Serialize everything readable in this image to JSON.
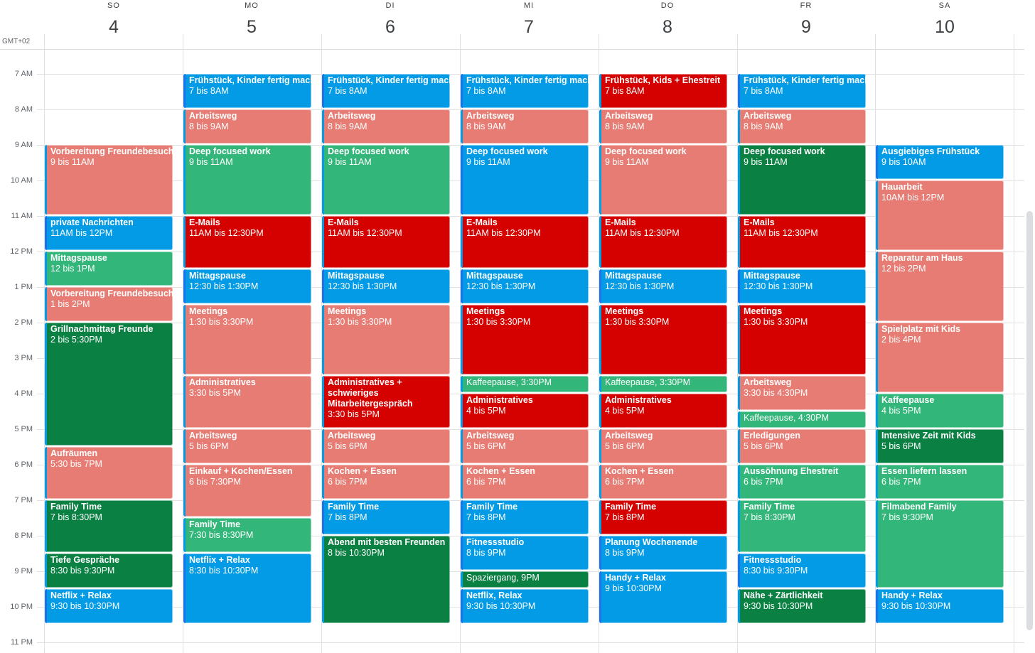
{
  "timezone": "GMT+02",
  "hours": [
    "7 AM",
    "8 AM",
    "9 AM",
    "10 AM",
    "11 AM",
    "12 PM",
    "1 PM",
    "2 PM",
    "3 PM",
    "4 PM",
    "5 PM",
    "6 PM",
    "7 PM",
    "8 PM",
    "9 PM",
    "10 PM",
    "11 PM"
  ],
  "colors": {
    "blue": "#039be5",
    "salmon": "#e67c73",
    "green": "#33b679",
    "dgreen": "#0b8043",
    "red": "#d50000"
  },
  "days": [
    {
      "dow": "SO",
      "num": "4",
      "events": [
        {
          "title": "Vorbereitung Freundebesuch",
          "sub": "9 bis 11AM",
          "start": 9,
          "end": 11,
          "color": "salmon"
        },
        {
          "title": "private Nachrichten",
          "sub": "11AM bis 12PM",
          "start": 11,
          "end": 12,
          "color": "blue"
        },
        {
          "title": "Mittagspause",
          "sub": "12 bis 1PM",
          "start": 12,
          "end": 13,
          "color": "green"
        },
        {
          "title": "Vorbereitung Freundebesuch",
          "sub": "1 bis 2PM",
          "start": 13,
          "end": 14,
          "color": "salmon"
        },
        {
          "title": "Grillnachmittag Freunde",
          "sub": "2 bis 5:30PM",
          "start": 14,
          "end": 17.5,
          "color": "dgreen"
        },
        {
          "title": "Aufräumen",
          "sub": "5:30 bis 7PM",
          "start": 17.5,
          "end": 19,
          "color": "salmon"
        },
        {
          "title": "Family Time",
          "sub": "7 bis 8:30PM",
          "start": 19,
          "end": 20.5,
          "color": "dgreen"
        },
        {
          "title": "Tiefe Gespräche",
          "sub": "8:30 bis 9:30PM",
          "start": 20.5,
          "end": 21.5,
          "color": "dgreen"
        },
        {
          "title": "Netflix + Relax",
          "sub": "9:30 bis 10:30PM",
          "start": 21.5,
          "end": 22.5,
          "color": "blue"
        }
      ]
    },
    {
      "dow": "MO",
      "num": "5",
      "events": [
        {
          "title": "Frühstück, Kinder fertig machen",
          "sub": "7 bis 8AM",
          "start": 7,
          "end": 8,
          "color": "blue"
        },
        {
          "title": "Arbeitsweg",
          "sub": "8 bis 9AM",
          "start": 8,
          "end": 9,
          "color": "salmon"
        },
        {
          "title": "Deep focused work",
          "sub": "9 bis 11AM",
          "start": 9,
          "end": 11,
          "color": "green"
        },
        {
          "title": "E-Mails",
          "sub": "11AM bis 12:30PM",
          "start": 11,
          "end": 12.5,
          "color": "red"
        },
        {
          "title": "Mittagspause",
          "sub": "12:30 bis 1:30PM",
          "start": 12.5,
          "end": 13.5,
          "color": "blue"
        },
        {
          "title": "Meetings",
          "sub": "1:30 bis 3:30PM",
          "start": 13.5,
          "end": 15.5,
          "color": "salmon"
        },
        {
          "title": "Administratives",
          "sub": "3:30 bis 5PM",
          "start": 15.5,
          "end": 17,
          "color": "salmon"
        },
        {
          "title": "Arbeitsweg",
          "sub": "5 bis 6PM",
          "start": 17,
          "end": 18,
          "color": "salmon"
        },
        {
          "title": "Einkauf + Kochen/Essen",
          "sub": "6 bis 7:30PM",
          "start": 18,
          "end": 19.5,
          "color": "salmon"
        },
        {
          "title": "Family Time",
          "sub": "7:30 bis 8:30PM",
          "start": 19.5,
          "end": 20.5,
          "color": "green"
        },
        {
          "title": "Netflix + Relax",
          "sub": "8:30 bis 10:30PM",
          "start": 20.5,
          "end": 22.5,
          "color": "blue"
        }
      ]
    },
    {
      "dow": "DI",
      "num": "6",
      "events": [
        {
          "title": "Frühstück, Kinder fertig machen",
          "sub": "7 bis 8AM",
          "start": 7,
          "end": 8,
          "color": "blue"
        },
        {
          "title": "Arbeitsweg",
          "sub": "8 bis 9AM",
          "start": 8,
          "end": 9,
          "color": "salmon"
        },
        {
          "title": "Deep focused work",
          "sub": "9 bis 11AM",
          "start": 9,
          "end": 11,
          "color": "green"
        },
        {
          "title": "E-Mails",
          "sub": "11AM bis 12:30PM",
          "start": 11,
          "end": 12.5,
          "color": "red"
        },
        {
          "title": "Mittagspause",
          "sub": "12:30 bis 1:30PM",
          "start": 12.5,
          "end": 13.5,
          "color": "blue"
        },
        {
          "title": "Meetings",
          "sub": "1:30 bis 3:30PM",
          "start": 13.5,
          "end": 15.5,
          "color": "salmon"
        },
        {
          "title": "Administratives + schwieriges Mitarbeitergespräch",
          "sub": "3:30 bis 5PM",
          "start": 15.5,
          "end": 17,
          "color": "red",
          "wrap": true
        },
        {
          "title": "Arbeitsweg",
          "sub": "5 bis 6PM",
          "start": 17,
          "end": 18,
          "color": "salmon"
        },
        {
          "title": "Kochen + Essen",
          "sub": "6 bis 7PM",
          "start": 18,
          "end": 19,
          "color": "salmon"
        },
        {
          "title": "Family Time",
          "sub": "7 bis 8PM",
          "start": 19,
          "end": 20,
          "color": "blue"
        },
        {
          "title": "Abend mit besten Freunden",
          "sub": "8 bis 10:30PM",
          "start": 20,
          "end": 22.5,
          "color": "dgreen"
        }
      ]
    },
    {
      "dow": "MI",
      "num": "7",
      "events": [
        {
          "title": "Frühstück, Kinder fertig machen",
          "sub": "7 bis 8AM",
          "start": 7,
          "end": 8,
          "color": "blue"
        },
        {
          "title": "Arbeitsweg",
          "sub": "8 bis 9AM",
          "start": 8,
          "end": 9,
          "color": "salmon"
        },
        {
          "title": "Deep focused work",
          "sub": "9 bis 11AM",
          "start": 9,
          "end": 11,
          "color": "blue"
        },
        {
          "title": "E-Mails",
          "sub": "11AM bis 12:30PM",
          "start": 11,
          "end": 12.5,
          "color": "red"
        },
        {
          "title": "Mittagspause",
          "sub": "12:30 bis 1:30PM",
          "start": 12.5,
          "end": 13.5,
          "color": "blue"
        },
        {
          "title": "Meetings",
          "sub": "1:30 bis 3:30PM",
          "start": 13.5,
          "end": 15.5,
          "color": "red"
        },
        {
          "title": "Kaffeepause, 3:30PM",
          "sub": "",
          "start": 15.5,
          "end": 16,
          "color": "green",
          "normal": true
        },
        {
          "title": "Administratives",
          "sub": "4 bis 5PM",
          "start": 16,
          "end": 17,
          "color": "red"
        },
        {
          "title": "Arbeitsweg",
          "sub": "5 bis 6PM",
          "start": 17,
          "end": 18,
          "color": "salmon"
        },
        {
          "title": "Kochen + Essen",
          "sub": "6 bis 7PM",
          "start": 18,
          "end": 19,
          "color": "salmon"
        },
        {
          "title": "Family Time",
          "sub": "7 bis 8PM",
          "start": 19,
          "end": 20,
          "color": "blue"
        },
        {
          "title": "Fitnessstudio",
          "sub": "8 bis 9PM",
          "start": 20,
          "end": 21,
          "color": "blue"
        },
        {
          "title": "Spaziergang, 9PM",
          "sub": "",
          "start": 21,
          "end": 21.5,
          "color": "dgreen",
          "normal": true
        },
        {
          "title": "Netflix, Relax",
          "sub": "9:30 bis 10:30PM",
          "start": 21.5,
          "end": 22.5,
          "color": "blue"
        }
      ]
    },
    {
      "dow": "DO",
      "num": "8",
      "events": [
        {
          "title": "Frühstück, Kids + Ehestreit",
          "sub": "7 bis 8AM",
          "start": 7,
          "end": 8,
          "color": "red"
        },
        {
          "title": "Arbeitsweg",
          "sub": "8 bis 9AM",
          "start": 8,
          "end": 9,
          "color": "salmon"
        },
        {
          "title": "Deep focused work",
          "sub": "9 bis 11AM",
          "start": 9,
          "end": 11,
          "color": "salmon"
        },
        {
          "title": "E-Mails",
          "sub": "11AM bis 12:30PM",
          "start": 11,
          "end": 12.5,
          "color": "red"
        },
        {
          "title": "Mittagspause",
          "sub": "12:30 bis 1:30PM",
          "start": 12.5,
          "end": 13.5,
          "color": "blue"
        },
        {
          "title": "Meetings",
          "sub": "1:30 bis 3:30PM",
          "start": 13.5,
          "end": 15.5,
          "color": "red"
        },
        {
          "title": "Kaffeepause, 3:30PM",
          "sub": "",
          "start": 15.5,
          "end": 16,
          "color": "green",
          "normal": true
        },
        {
          "title": "Administratives",
          "sub": "4 bis 5PM",
          "start": 16,
          "end": 17,
          "color": "red"
        },
        {
          "title": "Arbeitsweg",
          "sub": "5 bis 6PM",
          "start": 17,
          "end": 18,
          "color": "salmon"
        },
        {
          "title": "Kochen + Essen",
          "sub": "6 bis 7PM",
          "start": 18,
          "end": 19,
          "color": "salmon"
        },
        {
          "title": "Family Time",
          "sub": "7 bis 8PM",
          "start": 19,
          "end": 20,
          "color": "red"
        },
        {
          "title": "Planung Wochenende",
          "sub": "8 bis 9PM",
          "start": 20,
          "end": 21,
          "color": "blue"
        },
        {
          "title": "Handy + Relax",
          "sub": "9 bis 10:30PM",
          "start": 21,
          "end": 22.5,
          "color": "blue"
        }
      ]
    },
    {
      "dow": "FR",
      "num": "9",
      "events": [
        {
          "title": "Frühstück, Kinder fertig machen",
          "sub": "7 bis 8AM",
          "start": 7,
          "end": 8,
          "color": "blue"
        },
        {
          "title": "Arbeitsweg",
          "sub": "8 bis 9AM",
          "start": 8,
          "end": 9,
          "color": "salmon"
        },
        {
          "title": "Deep focused work",
          "sub": "9 bis 11AM",
          "start": 9,
          "end": 11,
          "color": "dgreen"
        },
        {
          "title": "E-Mails",
          "sub": "11AM bis 12:30PM",
          "start": 11,
          "end": 12.5,
          "color": "red"
        },
        {
          "title": "Mittagspause",
          "sub": "12:30 bis 1:30PM",
          "start": 12.5,
          "end": 13.5,
          "color": "blue"
        },
        {
          "title": "Meetings",
          "sub": "1:30 bis 3:30PM",
          "start": 13.5,
          "end": 15.5,
          "color": "red"
        },
        {
          "title": "Arbeitsweg",
          "sub": "3:30 bis 4:30PM",
          "start": 15.5,
          "end": 16.5,
          "color": "salmon"
        },
        {
          "title": "Kaffeepause, 4:30PM",
          "sub": "",
          "start": 16.5,
          "end": 17,
          "color": "green",
          "normal": true
        },
        {
          "title": "Erledigungen",
          "sub": "5 bis 6PM",
          "start": 17,
          "end": 18,
          "color": "salmon"
        },
        {
          "title": "Aussöhnung Ehestreit",
          "sub": "6 bis 7PM",
          "start": 18,
          "end": 19,
          "color": "green"
        },
        {
          "title": "Family Time",
          "sub": "7 bis 8:30PM",
          "start": 19,
          "end": 20.5,
          "color": "green"
        },
        {
          "title": "Fitnessstudio",
          "sub": "8:30 bis 9:30PM",
          "start": 20.5,
          "end": 21.5,
          "color": "blue"
        },
        {
          "title": "Nähe + Zärtlichkeit",
          "sub": "9:30 bis 10:30PM",
          "start": 21.5,
          "end": 22.5,
          "color": "dgreen"
        }
      ]
    },
    {
      "dow": "SA",
      "num": "10",
      "events": [
        {
          "title": "Ausgiebiges Frühstück",
          "sub": "9 bis 10AM",
          "start": 9,
          "end": 10,
          "color": "blue"
        },
        {
          "title": "Hauarbeit",
          "sub": "10AM bis 12PM",
          "start": 10,
          "end": 12,
          "color": "salmon"
        },
        {
          "title": "Reparatur am Haus",
          "sub": "12 bis 2PM",
          "start": 12,
          "end": 14,
          "color": "salmon"
        },
        {
          "title": "Spielplatz mit Kids",
          "sub": "2 bis 4PM",
          "start": 14,
          "end": 16,
          "color": "salmon"
        },
        {
          "title": "Kaffeepause",
          "sub": "4 bis 5PM",
          "start": 16,
          "end": 17,
          "color": "green"
        },
        {
          "title": "Intensive Zeit mit Kids",
          "sub": "5 bis 6PM",
          "start": 17,
          "end": 18,
          "color": "dgreen"
        },
        {
          "title": "Essen liefern lassen",
          "sub": "6 bis 7PM",
          "start": 18,
          "end": 19,
          "color": "green"
        },
        {
          "title": "Filmabend Family",
          "sub": "7 bis 9:30PM",
          "start": 19,
          "end": 21.5,
          "color": "green"
        },
        {
          "title": "Handy + Relax",
          "sub": "9:30 bis 10:30PM",
          "start": 21.5,
          "end": 22.5,
          "color": "blue"
        }
      ]
    }
  ]
}
